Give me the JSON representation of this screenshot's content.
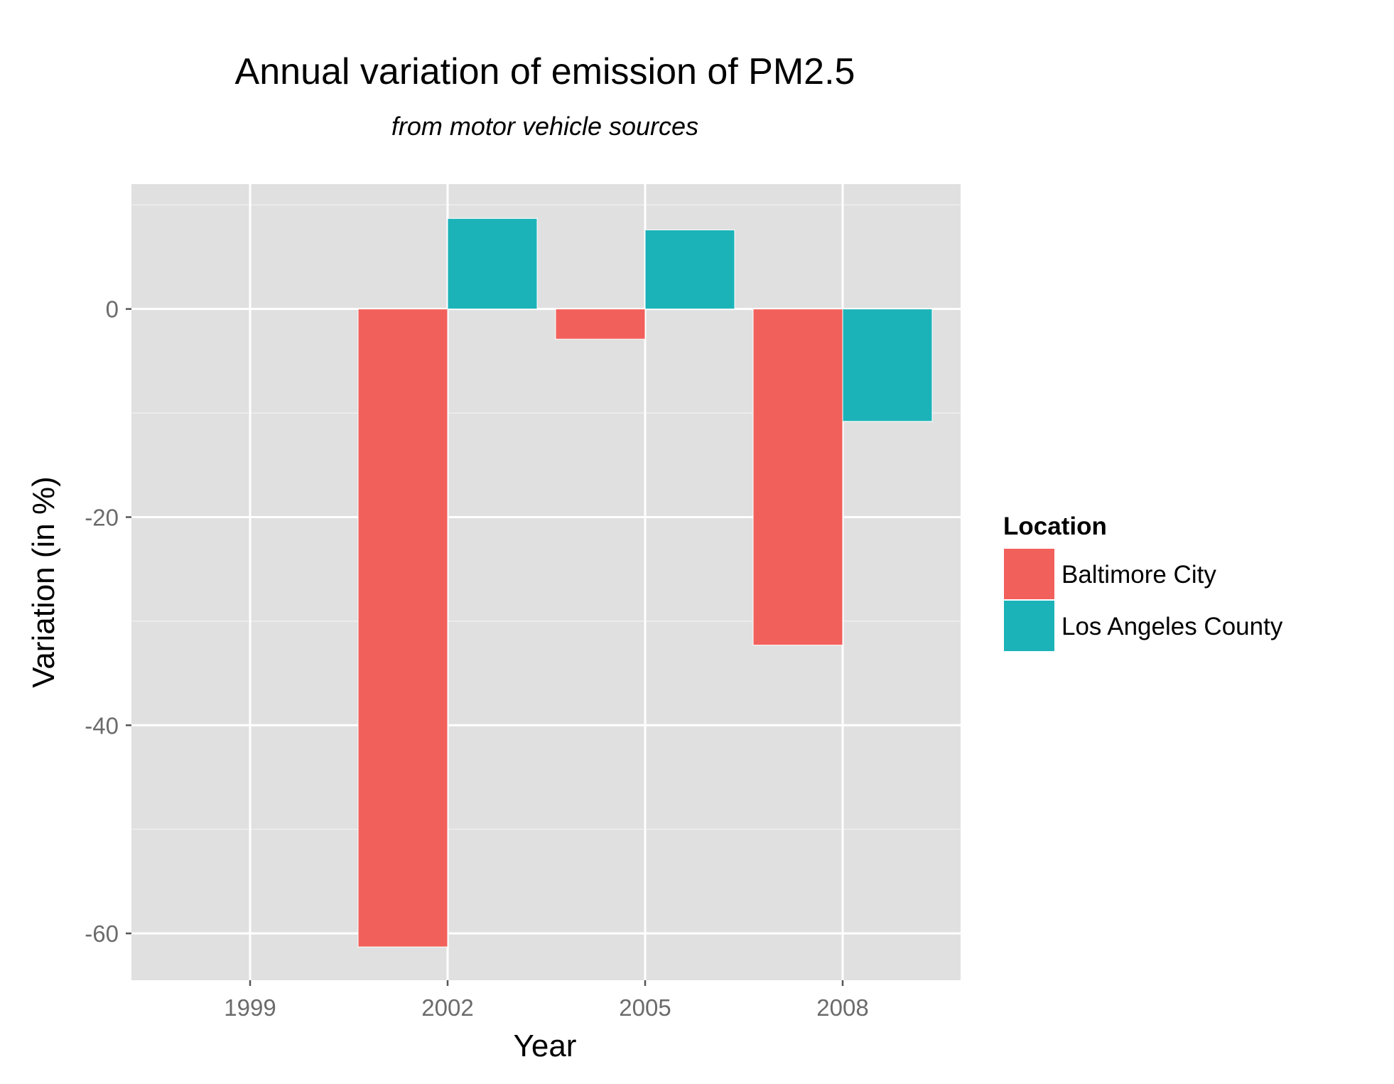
{
  "chart_data": {
    "type": "bar",
    "title": "Annual variation of emission of PM2.5",
    "subtitle": "from motor vehicle sources",
    "xlabel": "Year",
    "ylabel": "Variation (in %)",
    "categories": [
      "1999",
      "2002",
      "2005",
      "2008"
    ],
    "y_ticks": [
      "0",
      "-20",
      "-40",
      "-60"
    ],
    "y_tick_values": [
      0,
      -20,
      -40,
      -60
    ],
    "ylim": [
      -64.5,
      12
    ],
    "grid": true,
    "legend": {
      "title": "Location",
      "position": "right"
    },
    "series": [
      {
        "name": "Baltimore City",
        "color": "#f2605b",
        "values": [
          null,
          -61.3,
          -2.9,
          -32.3
        ]
      },
      {
        "name": "Los Angeles County",
        "color": "#1bb3b8",
        "values": [
          null,
          8.7,
          7.6,
          -10.8
        ]
      }
    ]
  }
}
